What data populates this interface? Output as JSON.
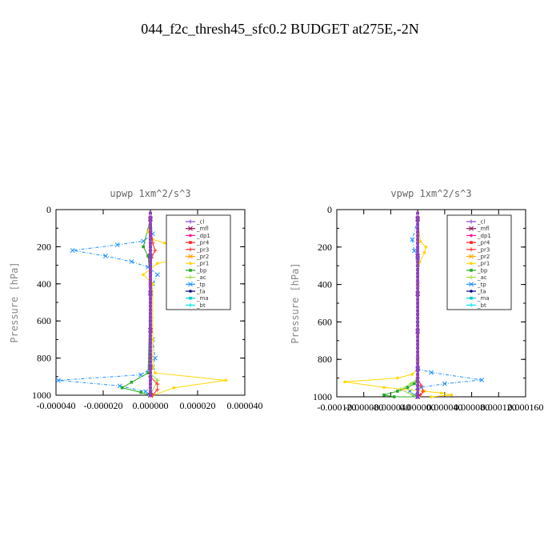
{
  "figure": {
    "title": "044_f2c_thresh45_sfc0.2  BUDGET at275E,-2N"
  },
  "chart_data": [
    {
      "type": "line",
      "title": "upwp   1xm^2/s^3",
      "ylabel": "Pressure [hPa]",
      "ylim": [
        1000,
        0
      ],
      "xlim": [
        -4e-05,
        4e-05
      ],
      "y_ticks": [
        "0",
        "200",
        "400",
        "600",
        "800",
        "1000"
      ],
      "x_ticks": [
        "-0.000040",
        "-0.000020",
        "0.000000",
        "0.000020",
        "0.000040"
      ],
      "legend_position": "top-right",
      "series": [
        {
          "name": "_cl",
          "color": "#8844cc",
          "x": [
            0,
            0,
            0,
            0,
            0,
            0
          ],
          "y": [
            50,
            250,
            450,
            650,
            850,
            1000
          ]
        },
        {
          "name": "_mfl",
          "color": "#8b0a50",
          "x": [
            0,
            0,
            0,
            0,
            0,
            0
          ],
          "y": [
            50,
            250,
            450,
            650,
            850,
            1000
          ]
        },
        {
          "name": "_dp1",
          "color": "#ff1493",
          "x": [
            0,
            0,
            0,
            0,
            0,
            0
          ],
          "y": [
            50,
            250,
            450,
            650,
            850,
            1000
          ]
        },
        {
          "name": "_pr4",
          "color": "#ff2020",
          "x": [
            0,
            0,
            0,
            0,
            0,
            0
          ],
          "y": [
            50,
            250,
            450,
            650,
            850,
            1000
          ]
        },
        {
          "name": "_pr3",
          "color": "#ff3030",
          "x": [
            0,
            1e-06,
            2e-06,
            5e-07,
            0,
            3e-06,
            3e-06,
            1e-06
          ],
          "y": [
            50,
            180,
            220,
            260,
            900,
            940,
            970,
            1000
          ]
        },
        {
          "name": "_pr2",
          "color": "#ffa500",
          "x": [
            0,
            0,
            0,
            0
          ],
          "y": [
            50,
            400,
            800,
            1000
          ]
        },
        {
          "name": "_pr1",
          "color": "#ffd700",
          "x": [
            0,
            -1e-06,
            1e-06,
            6e-06,
            1.8e-05,
            1.5e-05,
            3e-06,
            -3e-06,
            1e-06,
            1e-06,
            1e-06,
            2e-06,
            3.2e-05,
            1e-05,
            1e-06
          ],
          "y": [
            50,
            120,
            160,
            180,
            220,
            260,
            290,
            350,
            400,
            700,
            850,
            880,
            920,
            960,
            1000
          ]
        },
        {
          "name": "_bp",
          "color": "#22aa22",
          "x": [
            0,
            -3e-06,
            -1e-06,
            0,
            -1e-06,
            -8e-06,
            -1.2e-05,
            -4e-06,
            0
          ],
          "y": [
            50,
            200,
            250,
            400,
            880,
            930,
            960,
            985,
            1000
          ]
        },
        {
          "name": "_ac",
          "color": "#99dd33",
          "x": [
            0,
            0,
            0,
            3e-06,
            0
          ],
          "y": [
            50,
            400,
            880,
            920,
            1000
          ]
        },
        {
          "name": "_tp",
          "color": "#1e90ff",
          "x": [
            0,
            1e-06,
            -3e-06,
            -1.4e-05,
            -3.3e-05,
            -1.9e-05,
            -8e-06,
            -1e-06,
            3e-06,
            1e-06,
            1e-06,
            2e-06,
            1e-06,
            -4e-06,
            -3.9e-05,
            -1.3e-05,
            -2e-06,
            0
          ],
          "y": [
            50,
            130,
            170,
            190,
            220,
            250,
            280,
            310,
            350,
            400,
            700,
            800,
            850,
            890,
            920,
            950,
            980,
            1000
          ]
        },
        {
          "name": "_ta",
          "color": "#000080",
          "x": [
            0,
            0,
            0,
            0,
            0
          ],
          "y": [
            50,
            300,
            600,
            900,
            1000
          ]
        },
        {
          "name": "_ma",
          "color": "#00ced1",
          "x": [
            0,
            0,
            0,
            0,
            0
          ],
          "y": [
            50,
            300,
            600,
            900,
            1000
          ]
        },
        {
          "name": "_bt",
          "color": "#00e5ee",
          "x": [
            0,
            0,
            0,
            0,
            0
          ],
          "y": [
            50,
            300,
            600,
            900,
            1000
          ]
        }
      ]
    },
    {
      "type": "line",
      "title": "vpwp   1xm^2/s^3",
      "ylabel": "Pressure [hPa]",
      "ylim": [
        1000,
        0
      ],
      "xlim": [
        -0.00012,
        0.00016
      ],
      "y_ticks": [
        "0",
        "200",
        "400",
        "600",
        "800",
        "1000"
      ],
      "x_ticks": [
        "-0.000120",
        "-0.000080",
        "-0.000040",
        "0.000000",
        "0.000040",
        "0.000080",
        "0.000120",
        "0.000160"
      ],
      "legend_position": "top-right",
      "series": [
        {
          "name": "_cl",
          "color": "#8844cc",
          "x": [
            0,
            0,
            0,
            0,
            0,
            0
          ],
          "y": [
            50,
            250,
            450,
            650,
            850,
            1000
          ]
        },
        {
          "name": "_mfl",
          "color": "#8b0a50",
          "x": [
            0,
            0,
            0,
            0,
            0,
            0
          ],
          "y": [
            50,
            250,
            450,
            650,
            850,
            1000
          ]
        },
        {
          "name": "_dp1",
          "color": "#ff1493",
          "x": [
            0,
            0,
            0,
            0,
            0,
            0
          ],
          "y": [
            50,
            250,
            450,
            650,
            850,
            1000
          ]
        },
        {
          "name": "_pr4",
          "color": "#ff2020",
          "x": [
            0,
            0,
            0,
            0,
            0,
            0
          ],
          "y": [
            50,
            250,
            450,
            650,
            850,
            1000
          ]
        },
        {
          "name": "_pr3",
          "color": "#ff3030",
          "x": [
            0,
            0,
            5e-06,
            8e-06,
            4e-06,
            0
          ],
          "y": [
            50,
            900,
            940,
            970,
            990,
            1000
          ]
        },
        {
          "name": "_pr2",
          "color": "#ffa500",
          "x": [
            0,
            0,
            0,
            0
          ],
          "y": [
            50,
            400,
            800,
            1000
          ]
        },
        {
          "name": "_pr1",
          "color": "#ffd700",
          "x": [
            0,
            4e-06,
            1.2e-05,
            1e-05,
            3e-06,
            0,
            0,
            -8e-06,
            -3e-05,
            -0.000108,
            -5e-05,
            1e-05,
            3.5e-05,
            5e-05,
            2e-05
          ],
          "y": [
            50,
            170,
            200,
            230,
            280,
            350,
            850,
            880,
            900,
            920,
            950,
            970,
            980,
            990,
            1000
          ]
        },
        {
          "name": "_bp",
          "color": "#22aa22",
          "x": [
            0,
            0,
            -5e-06,
            -1.5e-05,
            -3e-05,
            -5e-05,
            -3.5e-05,
            0
          ],
          "y": [
            50,
            900,
            930,
            950,
            970,
            990,
            1000,
            1000
          ]
        },
        {
          "name": "_ac",
          "color": "#99dd33",
          "x": [
            0,
            0,
            -1e-05,
            -2.5e-05,
            -8e-06,
            0
          ],
          "y": [
            50,
            900,
            930,
            960,
            990,
            1000
          ]
        },
        {
          "name": "_tp",
          "color": "#1e90ff",
          "x": [
            0,
            -8e-06,
            -5e-06,
            0,
            0,
            2e-05,
            9.5e-05,
            4e-05,
            5e-06,
            -1.2e-05,
            -5e-06,
            0
          ],
          "y": [
            50,
            160,
            220,
            260,
            850,
            870,
            910,
            930,
            950,
            970,
            990,
            1000
          ]
        },
        {
          "name": "_ta",
          "color": "#000080",
          "x": [
            0,
            0,
            0,
            0,
            0
          ],
          "y": [
            50,
            300,
            600,
            900,
            1000
          ]
        },
        {
          "name": "_ma",
          "color": "#00ced1",
          "x": [
            0,
            0,
            0,
            0,
            0
          ],
          "y": [
            50,
            300,
            600,
            900,
            1000
          ]
        },
        {
          "name": "_bt",
          "color": "#00e5ee",
          "x": [
            0,
            0,
            0,
            0,
            0
          ],
          "y": [
            50,
            300,
            600,
            900,
            1000
          ]
        }
      ]
    }
  ]
}
